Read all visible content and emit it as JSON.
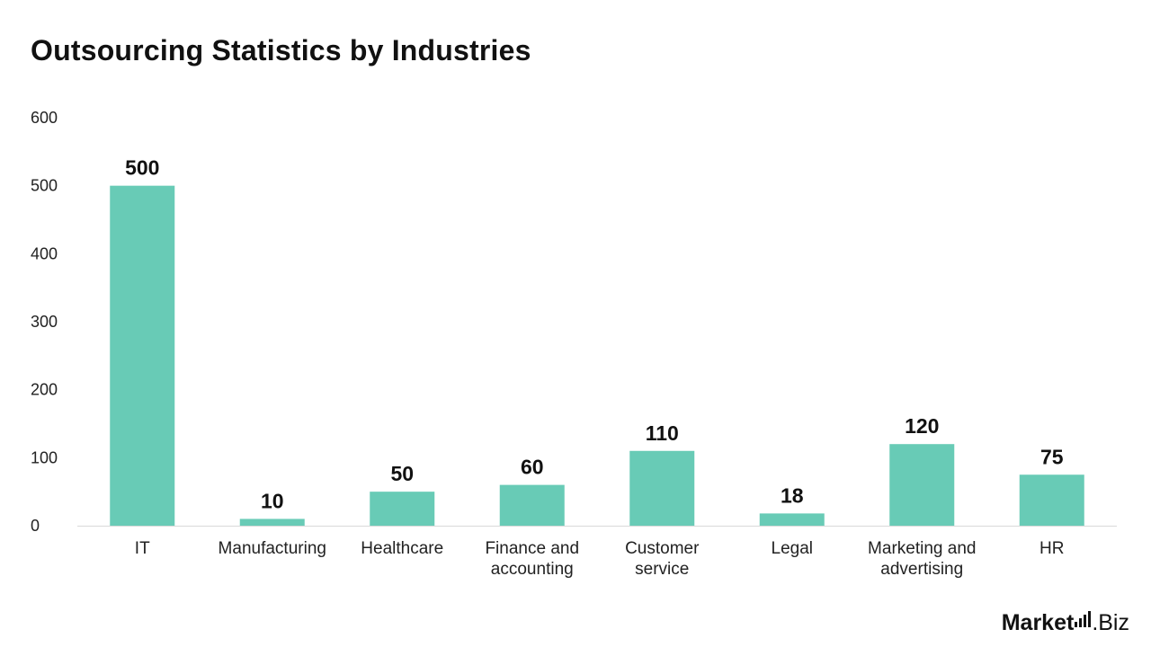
{
  "chart_data": {
    "type": "bar",
    "title": "Outsourcing Statistics by Industries",
    "xlabel": "",
    "ylabel": "",
    "categories": [
      [
        "IT"
      ],
      [
        "Manufacturing"
      ],
      [
        "Healthcare"
      ],
      [
        "Finance and",
        "accounting"
      ],
      [
        "Customer",
        "service"
      ],
      [
        "Legal"
      ],
      [
        "Marketing and",
        "advertising"
      ],
      [
        "HR"
      ]
    ],
    "values": [
      500,
      10,
      50,
      60,
      110,
      18,
      120,
      75
    ],
    "ylim": [
      0,
      600
    ],
    "yticks": [
      0,
      100,
      200,
      300,
      400,
      500,
      600
    ],
    "grid": false,
    "legend": "none",
    "bar_color": "#68cbb6",
    "axis_color": "#d9d9d9"
  },
  "branding": {
    "logo_text_main": "Market",
    "logo_text_suffix": ".Biz"
  }
}
